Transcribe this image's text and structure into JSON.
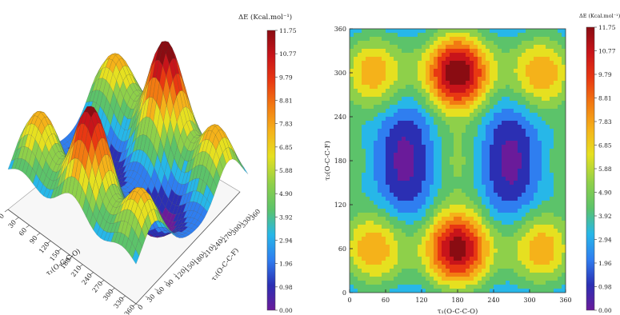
{
  "chart_data": [
    {
      "type": "surface",
      "title": "",
      "xlabel": "τ₁(O-C-C-O)",
      "ylabel": "τ₂(O-C-C-F)",
      "zlabel": "",
      "x_ticks": [
        "0",
        "30",
        "60",
        "90",
        "120",
        "150",
        "180",
        "210",
        "240",
        "270",
        "300",
        "330",
        "360"
      ],
      "y_ticks": [
        "0",
        "30",
        "60",
        "90",
        "120",
        "150",
        "180",
        "210",
        "240",
        "270",
        "300",
        "330",
        "360"
      ],
      "colorbar": {
        "label": "ΔE (Kcal.mol⁻¹)",
        "ticks": [
          "0.00",
          "0.98",
          "1.96",
          "2.94",
          "3.92",
          "4.90",
          "5.88",
          "6.85",
          "7.83",
          "8.81",
          "9.79",
          "10.77",
          "11.75"
        ],
        "range": [
          0,
          11.75
        ]
      },
      "peaks": [
        {
          "x": 180,
          "y": 60,
          "z": 11.3
        },
        {
          "x": 180,
          "y": 300,
          "z": 11.75
        },
        {
          "x": 40,
          "y": 60,
          "z": 7.8
        },
        {
          "x": 320,
          "y": 60,
          "z": 7.6
        },
        {
          "x": 40,
          "y": 300,
          "z": 7.6
        },
        {
          "x": 320,
          "y": 300,
          "z": 7.8
        }
      ]
    },
    {
      "type": "heatmap",
      "title": "",
      "xlabel": "τ₁(O-C-C-O)",
      "ylabel": "τ₂(O-C-C-F)",
      "x_ticks": [
        "0",
        "60",
        "120",
        "180",
        "240",
        "300",
        "360"
      ],
      "y_ticks": [
        "0",
        "60",
        "120",
        "180",
        "240",
        "300",
        "360"
      ],
      "xlim": [
        0,
        360
      ],
      "ylim": [
        0,
        360
      ],
      "colorbar": {
        "label": "ΔE (Kcal.mol⁻¹)",
        "ticks": [
          "0.00",
          "0.98",
          "1.96",
          "2.94",
          "3.92",
          "4.90",
          "5.88",
          "6.85",
          "7.83",
          "8.81",
          "9.79",
          "10.77",
          "11.75"
        ],
        "range": [
          0,
          11.75
        ]
      },
      "maxima": [
        {
          "x": 180,
          "y": 60,
          "z": 11.3
        },
        {
          "x": 180,
          "y": 300,
          "z": 11.75
        },
        {
          "x": 40,
          "y": 60,
          "z": 7.8
        },
        {
          "x": 320,
          "y": 60,
          "z": 7.6
        },
        {
          "x": 40,
          "y": 300,
          "z": 7.6
        },
        {
          "x": 320,
          "y": 300,
          "z": 7.8
        },
        {
          "x": 180,
          "y": 180,
          "z": 5.2
        },
        {
          "x": 0,
          "y": 180,
          "z": 4.6
        },
        {
          "x": 360,
          "y": 180,
          "z": 4.6
        }
      ],
      "minima": [
        {
          "x": 95,
          "y": 180,
          "z": 0.0
        },
        {
          "x": 265,
          "y": 180,
          "z": 0.0
        }
      ]
    }
  ]
}
